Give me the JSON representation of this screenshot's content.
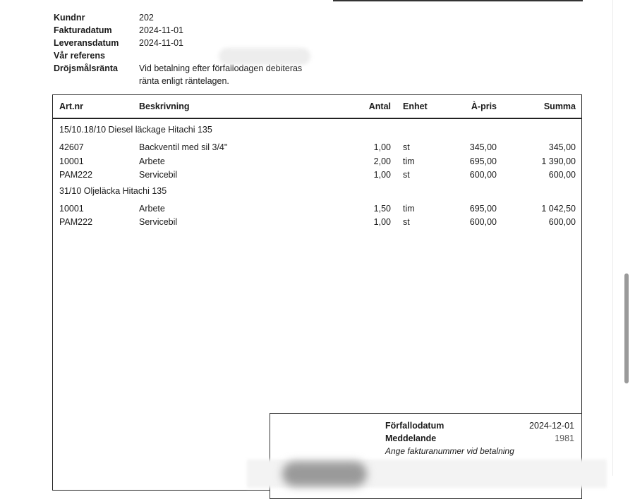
{
  "info": {
    "rows": [
      {
        "label": "Kundnr",
        "value": "202"
      },
      {
        "label": "Fakturadatum",
        "value": "2024-11-01"
      },
      {
        "label": "Leveransdatum",
        "value": "2024-11-01"
      },
      {
        "label": "Vår referens",
        "value": ""
      },
      {
        "label": "Dröjsmålsränta",
        "value": "Vid betalning efter förfallodagen debiteras",
        "value2": "ränta enligt räntelagen."
      }
    ]
  },
  "table": {
    "headers": [
      "Art.nr",
      "Beskrivning",
      "Antal",
      "Enhet",
      "À-pris",
      "Summa"
    ],
    "groups": [
      {
        "title": "15/10.18/10 Diesel läckage Hitachi 135",
        "rows": [
          [
            "42607",
            "Backventil med sil 3/4\"",
            "1,00",
            "st",
            "345,00",
            "345,00"
          ],
          [
            "10001",
            "Arbete",
            "2,00",
            "tim",
            "695,00",
            "1 390,00"
          ],
          [
            "PAM222",
            "Servicebil",
            "1,00",
            "st",
            "600,00",
            "600,00"
          ]
        ]
      },
      {
        "title": "31/10 Oljeläcka Hitachi 135",
        "rows": [
          [
            "10001",
            "Arbete",
            "1,50",
            "tim",
            "695,00",
            "1 042,50"
          ],
          [
            "PAM222",
            "Servicebil",
            "1,00",
            "st",
            "600,00",
            "600,00"
          ]
        ]
      }
    ]
  },
  "payment": {
    "due_label": "Förfallodatum",
    "due_value": "2024-12-01",
    "message_label": "Meddelande",
    "message_value": "1981",
    "note": "Ange fakturanummer vid betalning"
  }
}
